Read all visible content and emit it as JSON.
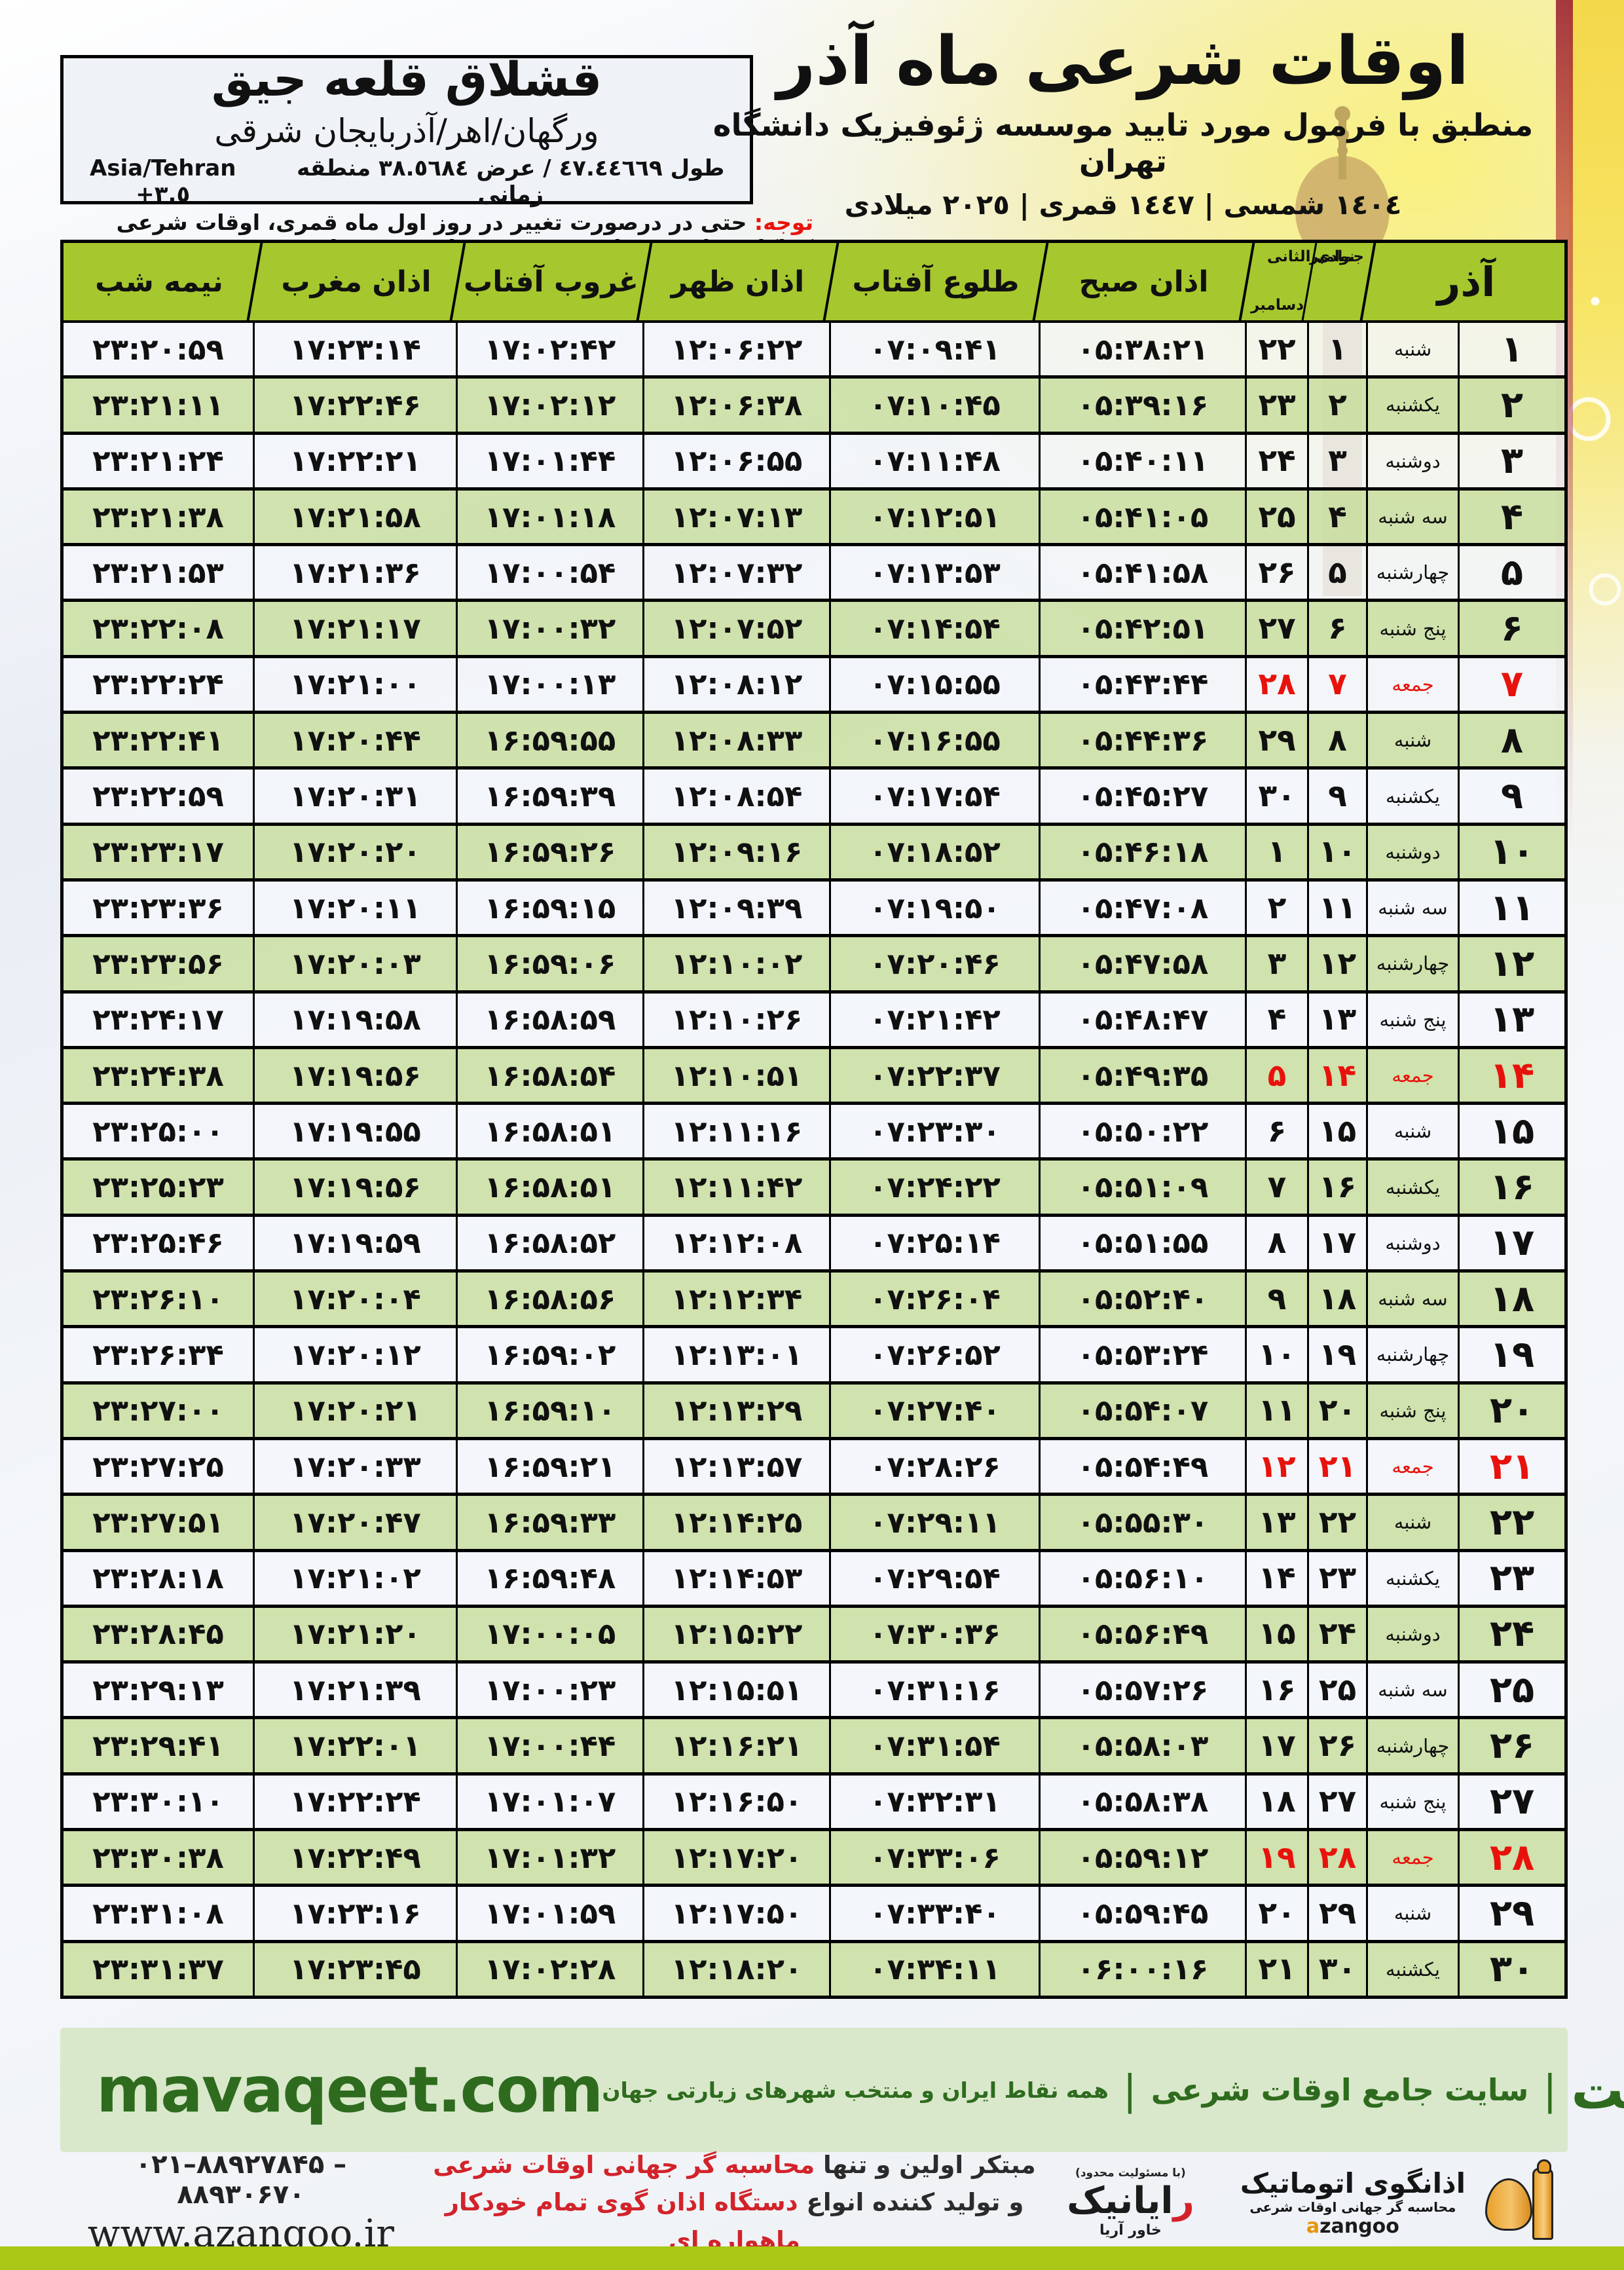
{
  "header": {
    "title": "اوقات شرعی ماه آذر",
    "subtitle": "منطبق با فرمول مورد تایید موسسه ژئوفیزیک دانشگاه تهران",
    "years_line": "١٤٠٤ شمسی | ١٤٤٧ قمری | ٢٠٢٥ میلادی"
  },
  "location": {
    "name": "قشلاق قلعه جیق",
    "region": "ورگهان/اهر/آذربایجان شرقی",
    "coords_fa": "طول ٤٧.٤٤٦٦٩ / عرض ٣٨.٥٦٨٤ منطقه زمانی",
    "timezone": "Asia/Tehran +٣.٥"
  },
  "note": {
    "label": "توجه:",
    "text": "حتی در درصورت تغییر در روز اول ماه قمری، اوقات شرعی کماکان برای روزهای شمسی و میلادی معتبر است."
  },
  "table": {
    "header": {
      "month": "آذر",
      "lunar_month": "جمادی الثانی",
      "greg_month_1": "نوامبر",
      "greg_month_2": "دسامبر",
      "cols": [
        "اذان صبح",
        "طلوع آفتاب",
        "اذان ظهر",
        "غروب آفتاب",
        "اذان مغرب",
        "نیمه شب"
      ]
    },
    "rows": [
      {
        "d": "۱",
        "w": "شنبه",
        "l": "۱",
        "g": "۲۲",
        "sobh": "۰۵:۳۸:۲۱",
        "tolu": "۰۷:۰۹:۴۱",
        "zohr": "۱۲:۰۶:۲۲",
        "ghorub": "۱۷:۰۲:۴۲",
        "maghreb": "۱۷:۲۳:۱۴",
        "nime": "۲۳:۲۰:۵۹",
        "friday": false
      },
      {
        "d": "۲",
        "w": "یکشنبه",
        "l": "۲",
        "g": "۲۳",
        "sobh": "۰۵:۳۹:۱۶",
        "tolu": "۰۷:۱۰:۴۵",
        "zohr": "۱۲:۰۶:۳۸",
        "ghorub": "۱۷:۰۲:۱۲",
        "maghreb": "۱۷:۲۲:۴۶",
        "nime": "۲۳:۲۱:۱۱",
        "friday": false
      },
      {
        "d": "۳",
        "w": "دوشنبه",
        "l": "۳",
        "g": "۲۴",
        "sobh": "۰۵:۴۰:۱۱",
        "tolu": "۰۷:۱۱:۴۸",
        "zohr": "۱۲:۰۶:۵۵",
        "ghorub": "۱۷:۰۱:۴۴",
        "maghreb": "۱۷:۲۲:۲۱",
        "nime": "۲۳:۲۱:۲۴",
        "friday": false
      },
      {
        "d": "۴",
        "w": "سه شنبه",
        "l": "۴",
        "g": "۲۵",
        "sobh": "۰۵:۴۱:۰۵",
        "tolu": "۰۷:۱۲:۵۱",
        "zohr": "۱۲:۰۷:۱۳",
        "ghorub": "۱۷:۰۱:۱۸",
        "maghreb": "۱۷:۲۱:۵۸",
        "nime": "۲۳:۲۱:۳۸",
        "friday": false
      },
      {
        "d": "۵",
        "w": "چهارشنبه",
        "l": "۵",
        "g": "۲۶",
        "sobh": "۰۵:۴۱:۵۸",
        "tolu": "۰۷:۱۳:۵۳",
        "zohr": "۱۲:۰۷:۳۲",
        "ghorub": "۱۷:۰۰:۵۴",
        "maghreb": "۱۷:۲۱:۳۶",
        "nime": "۲۳:۲۱:۵۳",
        "friday": false
      },
      {
        "d": "۶",
        "w": "پنج شنبه",
        "l": "۶",
        "g": "۲۷",
        "sobh": "۰۵:۴۲:۵۱",
        "tolu": "۰۷:۱۴:۵۴",
        "zohr": "۱۲:۰۷:۵۲",
        "ghorub": "۱۷:۰۰:۳۲",
        "maghreb": "۱۷:۲۱:۱۷",
        "nime": "۲۳:۲۲:۰۸",
        "friday": false
      },
      {
        "d": "۷",
        "w": "جمعه",
        "l": "۷",
        "g": "۲۸",
        "sobh": "۰۵:۴۳:۴۴",
        "tolu": "۰۷:۱۵:۵۵",
        "zohr": "۱۲:۰۸:۱۲",
        "ghorub": "۱۷:۰۰:۱۳",
        "maghreb": "۱۷:۲۱:۰۰",
        "nime": "۲۳:۲۲:۲۴",
        "friday": true
      },
      {
        "d": "۸",
        "w": "شنبه",
        "l": "۸",
        "g": "۲۹",
        "sobh": "۰۵:۴۴:۳۶",
        "tolu": "۰۷:۱۶:۵۵",
        "zohr": "۱۲:۰۸:۳۳",
        "ghorub": "۱۶:۵۹:۵۵",
        "maghreb": "۱۷:۲۰:۴۴",
        "nime": "۲۳:۲۲:۴۱",
        "friday": false
      },
      {
        "d": "۹",
        "w": "یکشنبه",
        "l": "۹",
        "g": "۳۰",
        "sobh": "۰۵:۴۵:۲۷",
        "tolu": "۰۷:۱۷:۵۴",
        "zohr": "۱۲:۰۸:۵۴",
        "ghorub": "۱۶:۵۹:۳۹",
        "maghreb": "۱۷:۲۰:۳۱",
        "nime": "۲۳:۲۲:۵۹",
        "friday": false
      },
      {
        "d": "۱۰",
        "w": "دوشنبه",
        "l": "۱۰",
        "g": "۱",
        "sobh": "۰۵:۴۶:۱۸",
        "tolu": "۰۷:۱۸:۵۲",
        "zohr": "۱۲:۰۹:۱۶",
        "ghorub": "۱۶:۵۹:۲۶",
        "maghreb": "۱۷:۲۰:۲۰",
        "nime": "۲۳:۲۳:۱۷",
        "friday": false
      },
      {
        "d": "۱۱",
        "w": "سه شنبه",
        "l": "۱۱",
        "g": "۲",
        "sobh": "۰۵:۴۷:۰۸",
        "tolu": "۰۷:۱۹:۵۰",
        "zohr": "۱۲:۰۹:۳۹",
        "ghorub": "۱۶:۵۹:۱۵",
        "maghreb": "۱۷:۲۰:۱۱",
        "nime": "۲۳:۲۳:۳۶",
        "friday": false
      },
      {
        "d": "۱۲",
        "w": "چهارشنبه",
        "l": "۱۲",
        "g": "۳",
        "sobh": "۰۵:۴۷:۵۸",
        "tolu": "۰۷:۲۰:۴۶",
        "zohr": "۱۲:۱۰:۰۲",
        "ghorub": "۱۶:۵۹:۰۶",
        "maghreb": "۱۷:۲۰:۰۳",
        "nime": "۲۳:۲۳:۵۶",
        "friday": false
      },
      {
        "d": "۱۳",
        "w": "پنج شنبه",
        "l": "۱۳",
        "g": "۴",
        "sobh": "۰۵:۴۸:۴۷",
        "tolu": "۰۷:۲۱:۴۲",
        "zohr": "۱۲:۱۰:۲۶",
        "ghorub": "۱۶:۵۸:۵۹",
        "maghreb": "۱۷:۱۹:۵۸",
        "nime": "۲۳:۲۴:۱۷",
        "friday": false
      },
      {
        "d": "۱۴",
        "w": "جمعه",
        "l": "۱۴",
        "g": "۵",
        "sobh": "۰۵:۴۹:۳۵",
        "tolu": "۰۷:۲۲:۳۷",
        "zohr": "۱۲:۱۰:۵۱",
        "ghorub": "۱۶:۵۸:۵۴",
        "maghreb": "۱۷:۱۹:۵۶",
        "nime": "۲۳:۲۴:۳۸",
        "friday": true
      },
      {
        "d": "۱۵",
        "w": "شنبه",
        "l": "۱۵",
        "g": "۶",
        "sobh": "۰۵:۵۰:۲۲",
        "tolu": "۰۷:۲۳:۳۰",
        "zohr": "۱۲:۱۱:۱۶",
        "ghorub": "۱۶:۵۸:۵۱",
        "maghreb": "۱۷:۱۹:۵۵",
        "nime": "۲۳:۲۵:۰۰",
        "friday": false
      },
      {
        "d": "۱۶",
        "w": "یکشنبه",
        "l": "۱۶",
        "g": "۷",
        "sobh": "۰۵:۵۱:۰۹",
        "tolu": "۰۷:۲۴:۲۲",
        "zohr": "۱۲:۱۱:۴۲",
        "ghorub": "۱۶:۵۸:۵۱",
        "maghreb": "۱۷:۱۹:۵۶",
        "nime": "۲۳:۲۵:۲۳",
        "friday": false
      },
      {
        "d": "۱۷",
        "w": "دوشنبه",
        "l": "۱۷",
        "g": "۸",
        "sobh": "۰۵:۵۱:۵۵",
        "tolu": "۰۷:۲۵:۱۴",
        "zohr": "۱۲:۱۲:۰۸",
        "ghorub": "۱۶:۵۸:۵۲",
        "maghreb": "۱۷:۱۹:۵۹",
        "nime": "۲۳:۲۵:۴۶",
        "friday": false
      },
      {
        "d": "۱۸",
        "w": "سه شنبه",
        "l": "۱۸",
        "g": "۹",
        "sobh": "۰۵:۵۲:۴۰",
        "tolu": "۰۷:۲۶:۰۴",
        "zohr": "۱۲:۱۲:۳۴",
        "ghorub": "۱۶:۵۸:۵۶",
        "maghreb": "۱۷:۲۰:۰۴",
        "nime": "۲۳:۲۶:۱۰",
        "friday": false
      },
      {
        "d": "۱۹",
        "w": "چهارشنبه",
        "l": "۱۹",
        "g": "۱۰",
        "sobh": "۰۵:۵۳:۲۴",
        "tolu": "۰۷:۲۶:۵۲",
        "zohr": "۱۲:۱۳:۰۱",
        "ghorub": "۱۶:۵۹:۰۲",
        "maghreb": "۱۷:۲۰:۱۲",
        "nime": "۲۳:۲۶:۳۴",
        "friday": false
      },
      {
        "d": "۲۰",
        "w": "پنج شنبه",
        "l": "۲۰",
        "g": "۱۱",
        "sobh": "۰۵:۵۴:۰۷",
        "tolu": "۰۷:۲۷:۴۰",
        "zohr": "۱۲:۱۳:۲۹",
        "ghorub": "۱۶:۵۹:۱۰",
        "maghreb": "۱۷:۲۰:۲۱",
        "nime": "۲۳:۲۷:۰۰",
        "friday": false
      },
      {
        "d": "۲۱",
        "w": "جمعه",
        "l": "۲۱",
        "g": "۱۲",
        "sobh": "۰۵:۵۴:۴۹",
        "tolu": "۰۷:۲۸:۲۶",
        "zohr": "۱۲:۱۳:۵۷",
        "ghorub": "۱۶:۵۹:۲۱",
        "maghreb": "۱۷:۲۰:۳۳",
        "nime": "۲۳:۲۷:۲۵",
        "friday": true
      },
      {
        "d": "۲۲",
        "w": "شنبه",
        "l": "۲۲",
        "g": "۱۳",
        "sobh": "۰۵:۵۵:۳۰",
        "tolu": "۰۷:۲۹:۱۱",
        "zohr": "۱۲:۱۴:۲۵",
        "ghorub": "۱۶:۵۹:۳۳",
        "maghreb": "۱۷:۲۰:۴۷",
        "nime": "۲۳:۲۷:۵۱",
        "friday": false
      },
      {
        "d": "۲۳",
        "w": "یکشنبه",
        "l": "۲۳",
        "g": "۱۴",
        "sobh": "۰۵:۵۶:۱۰",
        "tolu": "۰۷:۲۹:۵۴",
        "zohr": "۱۲:۱۴:۵۳",
        "ghorub": "۱۶:۵۹:۴۸",
        "maghreb": "۱۷:۲۱:۰۲",
        "nime": "۲۳:۲۸:۱۸",
        "friday": false
      },
      {
        "d": "۲۴",
        "w": "دوشنبه",
        "l": "۲۴",
        "g": "۱۵",
        "sobh": "۰۵:۵۶:۴۹",
        "tolu": "۰۷:۳۰:۳۶",
        "zohr": "۱۲:۱۵:۲۲",
        "ghorub": "۱۷:۰۰:۰۵",
        "maghreb": "۱۷:۲۱:۲۰",
        "nime": "۲۳:۲۸:۴۵",
        "friday": false
      },
      {
        "d": "۲۵",
        "w": "سه شنبه",
        "l": "۲۵",
        "g": "۱۶",
        "sobh": "۰۵:۵۷:۲۶",
        "tolu": "۰۷:۳۱:۱۶",
        "zohr": "۱۲:۱۵:۵۱",
        "ghorub": "۱۷:۰۰:۲۳",
        "maghreb": "۱۷:۲۱:۳۹",
        "nime": "۲۳:۲۹:۱۳",
        "friday": false
      },
      {
        "d": "۲۶",
        "w": "چهارشنبه",
        "l": "۲۶",
        "g": "۱۷",
        "sobh": "۰۵:۵۸:۰۳",
        "tolu": "۰۷:۳۱:۵۴",
        "zohr": "۱۲:۱۶:۲۱",
        "ghorub": "۱۷:۰۰:۴۴",
        "maghreb": "۱۷:۲۲:۰۱",
        "nime": "۲۳:۲۹:۴۱",
        "friday": false
      },
      {
        "d": "۲۷",
        "w": "پنج شنبه",
        "l": "۲۷",
        "g": "۱۸",
        "sobh": "۰۵:۵۸:۳۸",
        "tolu": "۰۷:۳۲:۳۱",
        "zohr": "۱۲:۱۶:۵۰",
        "ghorub": "۱۷:۰۱:۰۷",
        "maghreb": "۱۷:۲۲:۲۴",
        "nime": "۲۳:۳۰:۱۰",
        "friday": false
      },
      {
        "d": "۲۸",
        "w": "جمعه",
        "l": "۲۸",
        "g": "۱۹",
        "sobh": "۰۵:۵۹:۱۲",
        "tolu": "۰۷:۳۳:۰۶",
        "zohr": "۱۲:۱۷:۲۰",
        "ghorub": "۱۷:۰۱:۳۲",
        "maghreb": "۱۷:۲۲:۴۹",
        "nime": "۲۳:۳۰:۳۸",
        "friday": true
      },
      {
        "d": "۲۹",
        "w": "شنبه",
        "l": "۲۹",
        "g": "۲۰",
        "sobh": "۰۵:۵۹:۴۵",
        "tolu": "۰۷:۳۳:۴۰",
        "zohr": "۱۲:۱۷:۵۰",
        "ghorub": "۱۷:۰۱:۵۹",
        "maghreb": "۱۷:۲۳:۱۶",
        "nime": "۲۳:۳۱:۰۸",
        "friday": false
      },
      {
        "d": "۳۰",
        "w": "یکشنبه",
        "l": "۳۰",
        "g": "۲۱",
        "sobh": "۰۶:۰۰:۱۶",
        "tolu": "۰۷:۳۴:۱۱",
        "zohr": "۱۲:۱۸:۲۰",
        "ghorub": "۱۷:۰۲:۲۸",
        "maghreb": "۱۷:۲۳:۴۵",
        "nime": "۲۳:۳۱:۳۷",
        "friday": false
      }
    ]
  },
  "band": {
    "site_en": "mavaqeet.com",
    "brand": "مـواقیت",
    "sep": "|",
    "tag1": "سایت جامع اوقات شرعی",
    "tag2": "همه نقاط ایران و منتخب شهرهای زیارتی جهان"
  },
  "bottom": {
    "phone": "۰۲۱–۸۸۹۲۷۸۴۵ – ۸۸۹۳۰۶۷۰",
    "site": "www.azangoo.ir",
    "line1_black": "مبتکر اولین و تنها ",
    "line1_red": "محاسبه گر جهانی اوقات شرعی",
    "line2_black": "و تولید کننده انواع ",
    "line2_red": "دستگاه اذان گوی تمام خودکار ماهواره ای",
    "rayanik_lim": "(با مسئولیت محدود)",
    "rayanik_name": "رایانیک",
    "rayanik_sub": "خاور آریا",
    "azangoo_name": "اذانگوی اتوماتیک",
    "azangoo_sub": "محاسبه گر جهانی اوقات شرعی",
    "azangoo_en_a": "a",
    "azangoo_en_rest": "zangoo"
  },
  "colors": {
    "header_green": "#a6c72e",
    "row_green": "#cde0a8",
    "red": "#e8120c",
    "band_green": "#d9e8cb",
    "dark_green": "#2e6b1e",
    "bottom_bar": "#a9c714"
  }
}
